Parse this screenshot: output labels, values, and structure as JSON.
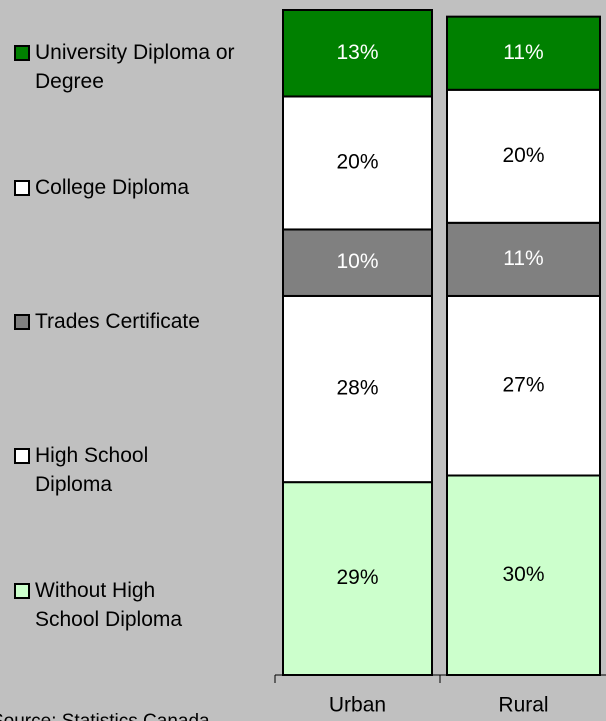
{
  "chart_data": {
    "type": "stacked_bar",
    "categories": [
      "Urban",
      "Rural"
    ],
    "series": [
      {
        "name": "Without High School Diploma",
        "color": "#ccffcc",
        "values": [
          29,
          30
        ],
        "value_labels": [
          "29%",
          "30%"
        ]
      },
      {
        "name": "High School Diploma",
        "color": "#ffffff",
        "values": [
          28,
          27
        ],
        "value_labels": [
          "28%",
          "27%"
        ]
      },
      {
        "name": "Trades Certificate",
        "color": "#808080",
        "values": [
          10,
          11
        ],
        "value_labels": [
          "10%",
          "11%"
        ]
      },
      {
        "name": "College Diploma",
        "color": "#ffffff",
        "values": [
          20,
          20
        ],
        "value_labels": [
          "20%",
          "20%"
        ]
      },
      {
        "name": "University Diploma or Degree",
        "color": "#008000",
        "values": [
          13,
          11
        ],
        "value_labels": [
          "13%",
          "11%"
        ]
      }
    ],
    "ylim": [
      0,
      100
    ],
    "source": "Source: Statistics Canada"
  }
}
